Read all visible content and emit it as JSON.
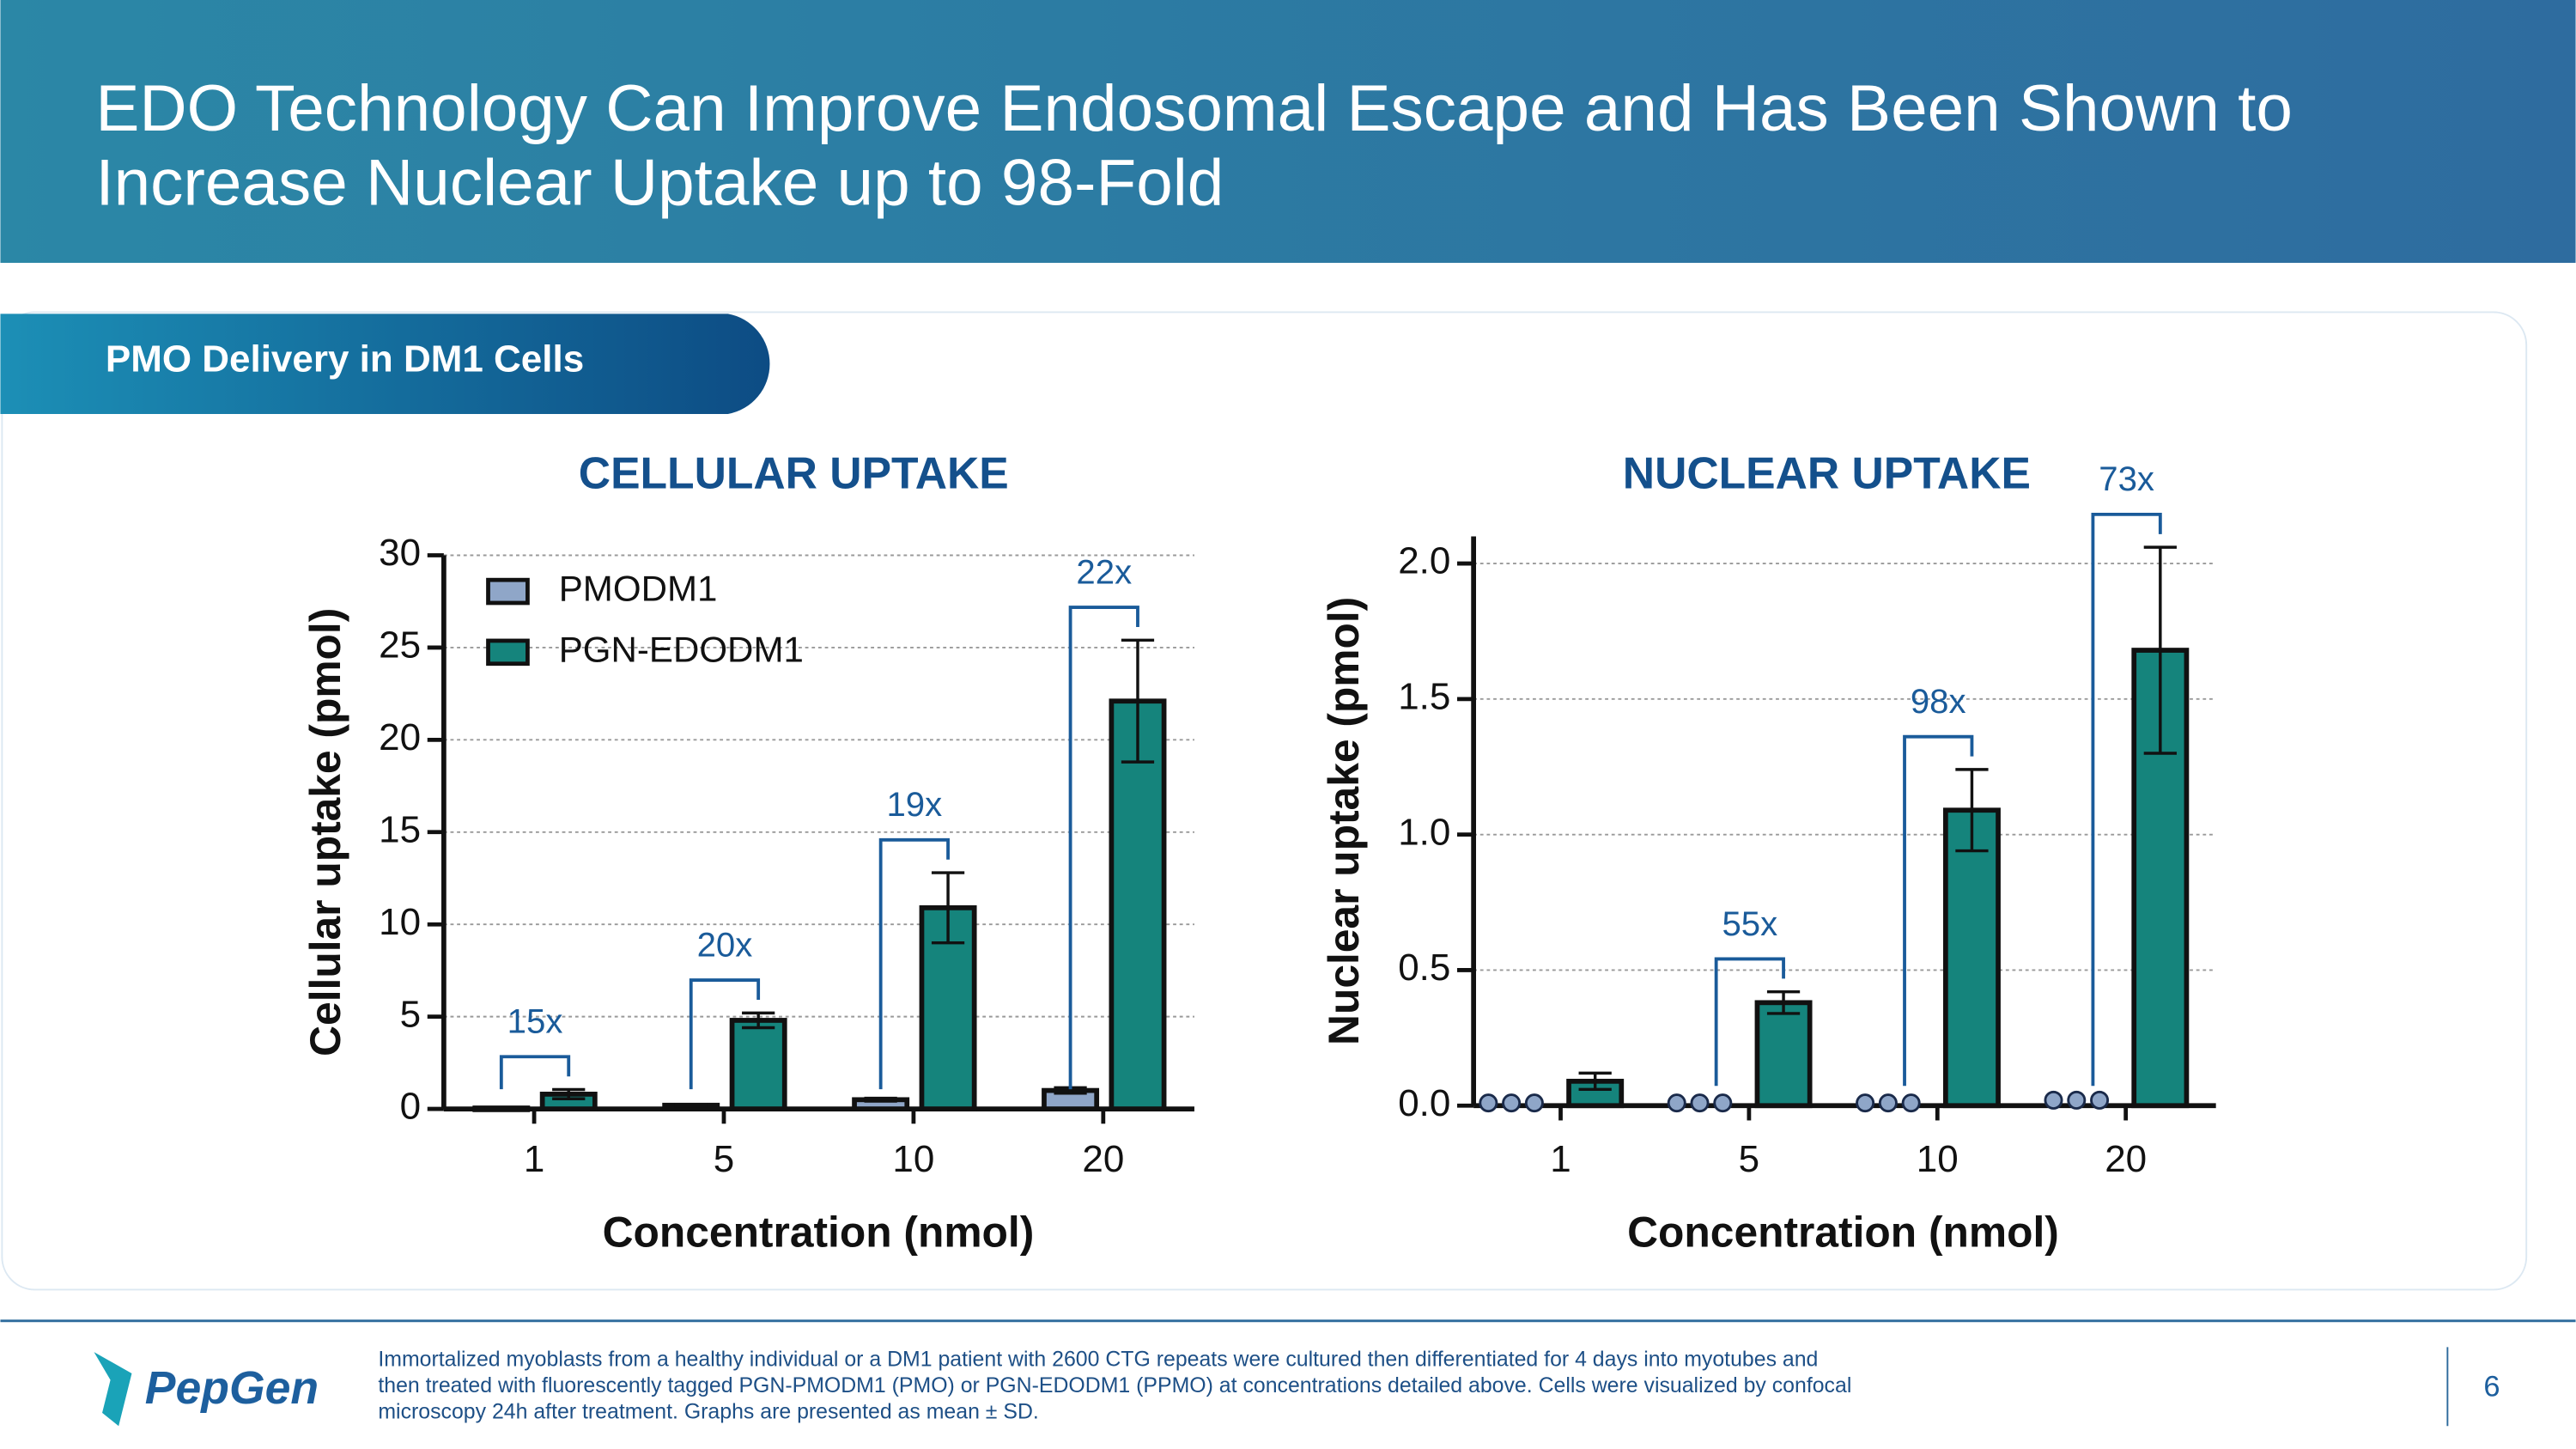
{
  "header": {
    "title_lines": [
      "EDO Technology Can Improve Endosomal Escape and Has Been Shown to",
      "Increase Nuclear Uptake up to 98-Fold"
    ]
  },
  "section": "PMO Delivery in DM1 Cells",
  "chart_data": [
    {
      "type": "bar",
      "title": "CELLULAR UPTAKE",
      "x_label": "Concentration (nmol)",
      "y_label": "Cellular uptake (pmol)",
      "categories": [
        "1",
        "5",
        "10",
        "20"
      ],
      "series": [
        {
          "name": "PMODM1",
          "color": "#8fa6c8",
          "values": [
            0.05,
            0.2,
            0.5,
            1.0
          ],
          "errors": [
            0.02,
            0.05,
            0.08,
            0.15
          ]
        },
        {
          "name": "PGN-EDODM1",
          "color": "#15847c",
          "values": [
            0.8,
            4.8,
            10.9,
            22.1
          ],
          "errors": [
            0.25,
            0.4,
            1.9,
            3.3
          ]
        }
      ],
      "fold_labels": [
        "15x",
        "20x",
        "19x",
        "22x"
      ],
      "ylim": [
        0,
        30
      ],
      "yticks": [
        0,
        5,
        10,
        15,
        20,
        25,
        30
      ],
      "grid": true,
      "legend": "top-left"
    },
    {
      "type": "bar",
      "title": "NUCLEAR UPTAKE",
      "x_label": "Concentration (nmol)",
      "y_label": "Nuclear uptake (pmol)",
      "categories": [
        "1",
        "5",
        "10",
        "20"
      ],
      "series": [
        {
          "name": "PMODM1",
          "color": "#8fa6c8",
          "marker": "dots",
          "values": [
            0.01,
            0.01,
            0.01,
            0.02
          ],
          "errors": [
            0,
            0,
            0,
            0
          ]
        },
        {
          "name": "PGN-EDODM1",
          "color": "#15847c",
          "values": [
            0.09,
            0.38,
            1.09,
            1.68
          ],
          "errors": [
            0.03,
            0.04,
            0.15,
            0.38
          ]
        }
      ],
      "fold_labels": [
        null,
        "55x",
        "98x",
        "73x"
      ],
      "ylim": [
        0,
        2.1
      ],
      "yticks": [
        {
          "value": 0,
          "label": "0.0"
        },
        0.5,
        {
          "value": 1,
          "label": "1.0"
        },
        1.5,
        {
          "value": 2,
          "label": "2.0"
        }
      ],
      "grid": true
    }
  ],
  "footnote": [
    "Immortalized myoblasts from a healthy individual or a DM1 patient with 2600 CTG repeats were cultured then differentiated for 4 days into myotubes and",
    "then treated with fluorescently tagged PGN-PMODM1 (PMO) or PGN-EDODM1 (PPMO) at concentrations detailed above. Cells were visualized by confocal",
    "microscopy 24h after treatment. Graphs are presented as mean ± SD."
  ],
  "logo": "PepGen",
  "page_number": "6"
}
